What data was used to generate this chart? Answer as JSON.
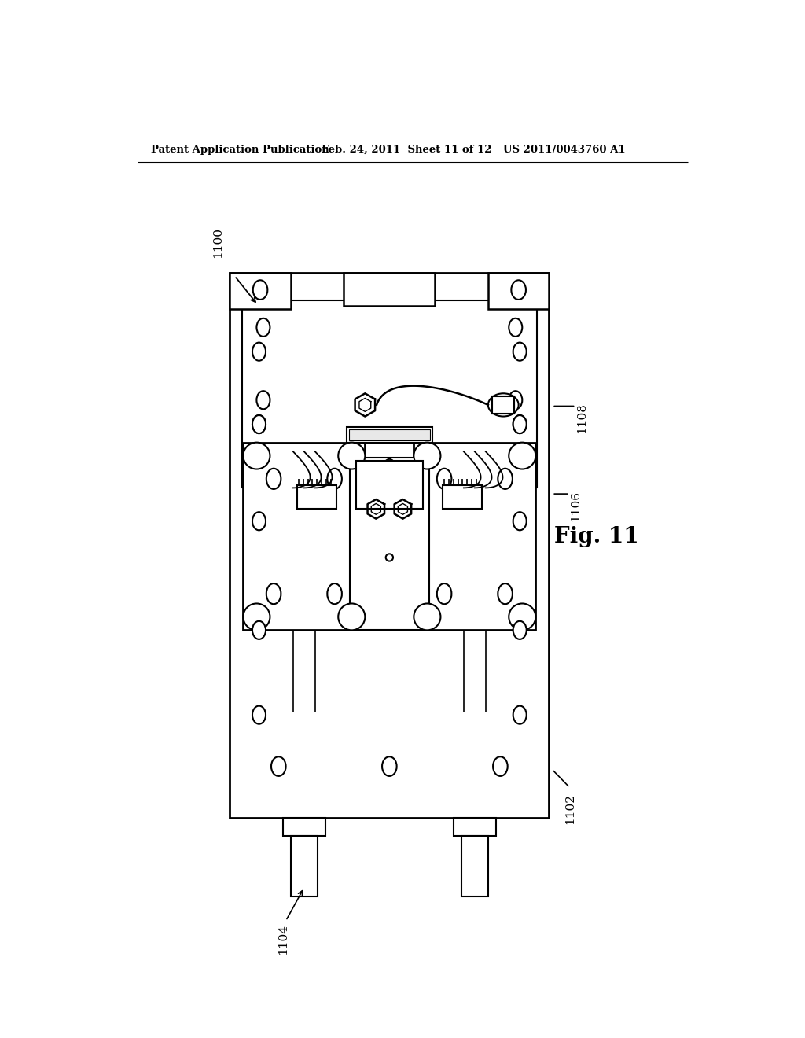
{
  "bg_color": "#ffffff",
  "line_color": "#000000",
  "header_left": "Patent Application Publication",
  "header_mid": "Feb. 24, 2011  Sheet 11 of 12",
  "header_right": "US 2011/0043760 A1",
  "fig_label": "Fig. 11",
  "label_1100": "1100",
  "label_1102": "1102",
  "label_1104": "1104",
  "label_1106": "1106",
  "label_1108": "1108"
}
